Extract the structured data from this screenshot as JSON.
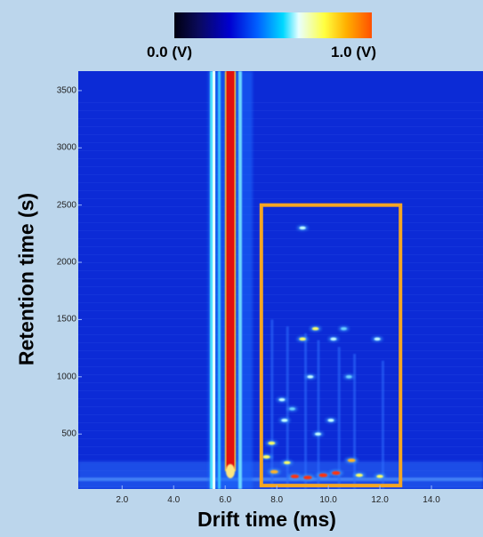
{
  "colorbar": {
    "min_label": "0.0 (V)",
    "max_label": "1.0 (V)",
    "range": [
      0.0,
      1.0
    ]
  },
  "colors": {
    "background": "#bcd6ec",
    "plot_background": "#0c2bd6",
    "highlight_box": "#f5a623",
    "reactant_peak": "#e01010"
  },
  "chart_data": {
    "type": "heatmap",
    "xlabel": "Drift time (ms)",
    "ylabel": "Retention time (s)",
    "xlim": [
      0.3,
      16.0
    ],
    "ylim": [
      20,
      3670
    ],
    "x_ticks": [
      "2.0",
      "4.0",
      "6.0",
      "8.0",
      "10.0",
      "12.0",
      "14.0"
    ],
    "x_tick_values": [
      2.0,
      4.0,
      6.0,
      8.0,
      10.0,
      12.0,
      14.0
    ],
    "y_ticks": [
      "500",
      "1000",
      "1500",
      "2000",
      "2500",
      "3000",
      "3500"
    ],
    "y_tick_values": [
      500,
      1000,
      1500,
      2000,
      2500,
      3000,
      3500
    ],
    "intensity_range_V": [
      0.0,
      1.0
    ],
    "reactant_ion_peak": {
      "drift_time_ms": 6.2,
      "intensity_V": 1.0
    },
    "highlight_region": {
      "x": [
        7.4,
        12.8
      ],
      "y": [
        50,
        2500
      ]
    },
    "signal_spots": [
      {
        "x": 9.0,
        "y": 2300,
        "v": 0.55
      },
      {
        "x": 9.5,
        "y": 1420,
        "v": 0.6
      },
      {
        "x": 9.0,
        "y": 1330,
        "v": 0.6
      },
      {
        "x": 10.2,
        "y": 1330,
        "v": 0.5
      },
      {
        "x": 11.9,
        "y": 1330,
        "v": 0.5
      },
      {
        "x": 10.6,
        "y": 1420,
        "v": 0.45
      },
      {
        "x": 9.3,
        "y": 1000,
        "v": 0.5
      },
      {
        "x": 10.8,
        "y": 1000,
        "v": 0.45
      },
      {
        "x": 8.2,
        "y": 800,
        "v": 0.5
      },
      {
        "x": 8.6,
        "y": 720,
        "v": 0.45
      },
      {
        "x": 8.3,
        "y": 620,
        "v": 0.55
      },
      {
        "x": 10.1,
        "y": 620,
        "v": 0.5
      },
      {
        "x": 9.6,
        "y": 500,
        "v": 0.5
      },
      {
        "x": 7.8,
        "y": 420,
        "v": 0.65
      },
      {
        "x": 7.6,
        "y": 300,
        "v": 0.7
      },
      {
        "x": 8.4,
        "y": 250,
        "v": 0.6
      },
      {
        "x": 10.9,
        "y": 270,
        "v": 0.8
      },
      {
        "x": 7.9,
        "y": 170,
        "v": 0.8
      },
      {
        "x": 8.7,
        "y": 130,
        "v": 0.9
      },
      {
        "x": 9.2,
        "y": 120,
        "v": 0.95
      },
      {
        "x": 9.8,
        "y": 140,
        "v": 0.95
      },
      {
        "x": 10.3,
        "y": 160,
        "v": 0.9
      },
      {
        "x": 11.2,
        "y": 140,
        "v": 0.7
      },
      {
        "x": 12.0,
        "y": 130,
        "v": 0.6
      }
    ]
  }
}
